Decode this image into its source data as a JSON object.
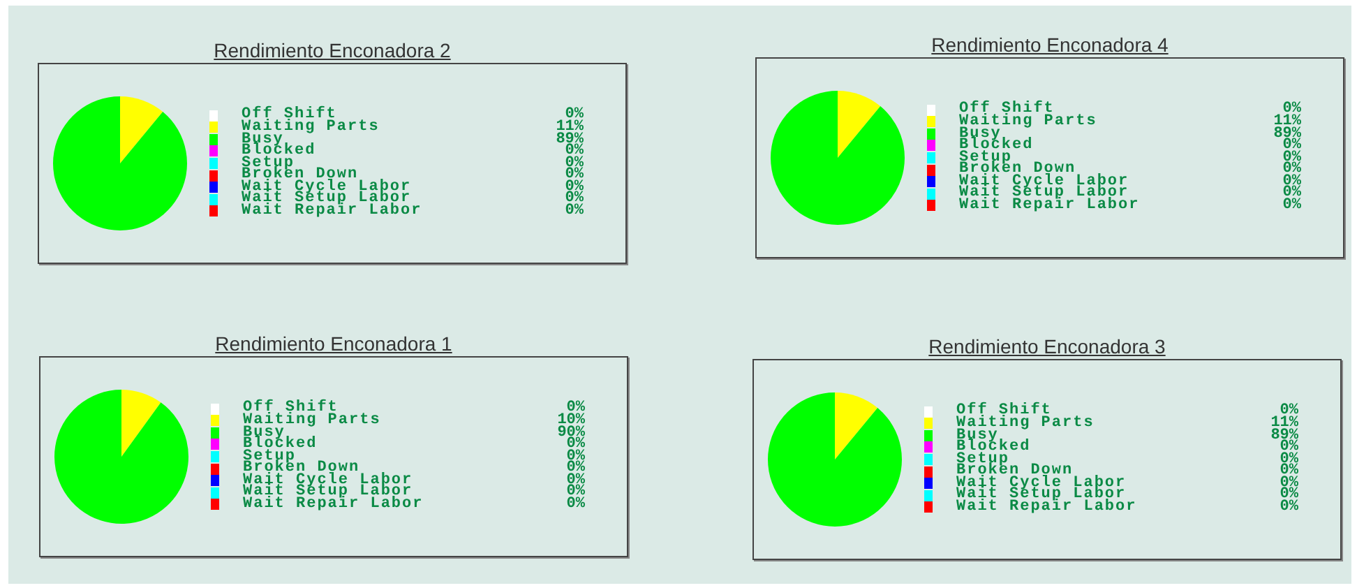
{
  "chart_data": [
    {
      "type": "pie",
      "title": "Rendimiento Enconadora 2",
      "legend": "right",
      "categories": [
        "Off Shift",
        "Waiting Parts",
        "Busy",
        "Blocked",
        "Setup",
        "Broken Down",
        "Wait Cycle Labor",
        "Wait Setup Labor",
        "Wait Repair Labor"
      ],
      "values": [
        0,
        11,
        89,
        0,
        0,
        0,
        0,
        0,
        0
      ],
      "value_labels": [
        "0%",
        "11%",
        "89%",
        "0%",
        "0%",
        "0%",
        "0%",
        "0%",
        "0%"
      ],
      "colors": [
        "#ffffff",
        "#ffff00",
        "#00ff00",
        "#ff00ff",
        "#00ffff",
        "#ff0000",
        "#0000ff",
        "#00ffff",
        "#ff0000"
      ]
    },
    {
      "type": "pie",
      "title": "Rendimiento Enconadora 4",
      "legend": "right",
      "categories": [
        "Off Shift",
        "Waiting Parts",
        "Busy",
        "Blocked",
        "Setup",
        "Broken Down",
        "Wait Cycle Labor",
        "Wait Setup Labor",
        "Wait Repair Labor"
      ],
      "values": [
        0,
        11,
        89,
        0,
        0,
        0,
        0,
        0,
        0
      ],
      "value_labels": [
        "0%",
        "11%",
        "89%",
        "0%",
        "0%",
        "0%",
        "0%",
        "0%",
        "0%"
      ],
      "colors": [
        "#ffffff",
        "#ffff00",
        "#00ff00",
        "#ff00ff",
        "#00ffff",
        "#ff0000",
        "#0000ff",
        "#00ffff",
        "#ff0000"
      ]
    },
    {
      "type": "pie",
      "title": "Rendimiento Enconadora 1",
      "legend": "right",
      "categories": [
        "Off Shift",
        "Waiting Parts",
        "Busy",
        "Blocked",
        "Setup",
        "Broken Down",
        "Wait Cycle Labor",
        "Wait Setup Labor",
        "Wait Repair Labor"
      ],
      "values": [
        0,
        10,
        90,
        0,
        0,
        0,
        0,
        0,
        0
      ],
      "value_labels": [
        "0%",
        "10%",
        "90%",
        "0%",
        "0%",
        "0%",
        "0%",
        "0%",
        "0%"
      ],
      "colors": [
        "#ffffff",
        "#ffff00",
        "#00ff00",
        "#ff00ff",
        "#00ffff",
        "#ff0000",
        "#0000ff",
        "#00ffff",
        "#ff0000"
      ]
    },
    {
      "type": "pie",
      "title": "Rendimiento Enconadora 3",
      "legend": "right",
      "categories": [
        "Off Shift",
        "Waiting Parts",
        "Busy",
        "Blocked",
        "Setup",
        "Broken Down",
        "Wait Cycle Labor",
        "Wait Setup Labor",
        "Wait Repair Labor"
      ],
      "values": [
        0,
        11,
        89,
        0,
        0,
        0,
        0,
        0,
        0
      ],
      "value_labels": [
        "0%",
        "11%",
        "89%",
        "0%",
        "0%",
        "0%",
        "0%",
        "0%",
        "0%"
      ],
      "colors": [
        "#ffffff",
        "#ffff00",
        "#00ff00",
        "#ff00ff",
        "#00ffff",
        "#ff0000",
        "#0000ff",
        "#00ffff",
        "#ff0000"
      ]
    }
  ]
}
